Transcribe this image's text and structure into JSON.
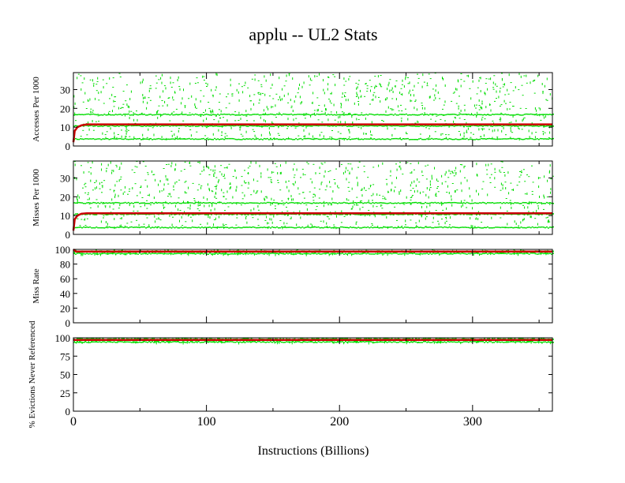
{
  "chart_data": [
    {
      "type": "scatter+line",
      "title": "applu -- UL2  Stats",
      "ylabel": "Accesses Per 1000",
      "xlim": [
        0,
        360
      ],
      "ylim": [
        0,
        39
      ],
      "yticks": [
        "0",
        "10",
        "20",
        "30"
      ],
      "ytick_values": [
        0,
        10,
        20,
        30
      ],
      "line": {
        "color": "#cc0000",
        "x": [
          0,
          1,
          3,
          6,
          10,
          360
        ],
        "y": [
          2,
          8,
          10,
          11,
          11.5,
          11.5
        ]
      },
      "scatter": {
        "color": "#00dd00",
        "dense_levels": [
          4,
          11,
          17
        ],
        "sparse_range": [
          4,
          39
        ]
      },
      "grid": false
    },
    {
      "type": "scatter+line",
      "ylabel": "Misses Per 1000",
      "xlim": [
        0,
        360
      ],
      "ylim": [
        0,
        39
      ],
      "yticks": [
        "0",
        "10",
        "20",
        "30"
      ],
      "ytick_values": [
        0,
        10,
        20,
        30
      ],
      "line": {
        "color": "#cc0000",
        "x": [
          0,
          1,
          3,
          6,
          10,
          360
        ],
        "y": [
          2,
          8,
          10,
          11,
          11.2,
          11.2
        ]
      },
      "scatter": {
        "color": "#00dd00",
        "dense_levels": [
          4,
          11,
          17
        ],
        "sparse_range": [
          4,
          39
        ]
      },
      "grid": false
    },
    {
      "type": "scatter+line",
      "ylabel": "Miss Rate",
      "xlim": [
        0,
        360
      ],
      "ylim": [
        0,
        100
      ],
      "yticks": [
        "0",
        "20",
        "40",
        "60",
        "80",
        "100"
      ],
      "ytick_values": [
        0,
        20,
        40,
        60,
        80,
        100
      ],
      "line": {
        "color": "#cc0000",
        "x": [
          0,
          2,
          360
        ],
        "y": [
          100,
          97,
          97
        ]
      },
      "scatter": {
        "color": "#00dd00",
        "dense_levels": [
          95,
          98
        ],
        "sparse_range": [
          94,
          100
        ]
      },
      "grid": false
    },
    {
      "type": "scatter+line",
      "ylabel": "% Evictions Never Referenced",
      "xlim": [
        0,
        360
      ],
      "ylim": [
        0,
        100
      ],
      "yticks": [
        "0",
        "25",
        "50",
        "75",
        "100"
      ],
      "ytick_values": [
        0,
        25,
        50,
        75,
        100
      ],
      "xticks": [
        "0",
        "100",
        "200",
        "300"
      ],
      "xtick_values": [
        0,
        100,
        200,
        300
      ],
      "xlabel": "Instructions (Billions)",
      "line": {
        "color": "#cc0000",
        "x": [
          0,
          360
        ],
        "y": [
          97,
          97
        ]
      },
      "scatter": {
        "color": "#00dd00",
        "dense_levels": [
          95,
          99
        ],
        "sparse_range": [
          94,
          100
        ]
      },
      "grid": false
    }
  ]
}
